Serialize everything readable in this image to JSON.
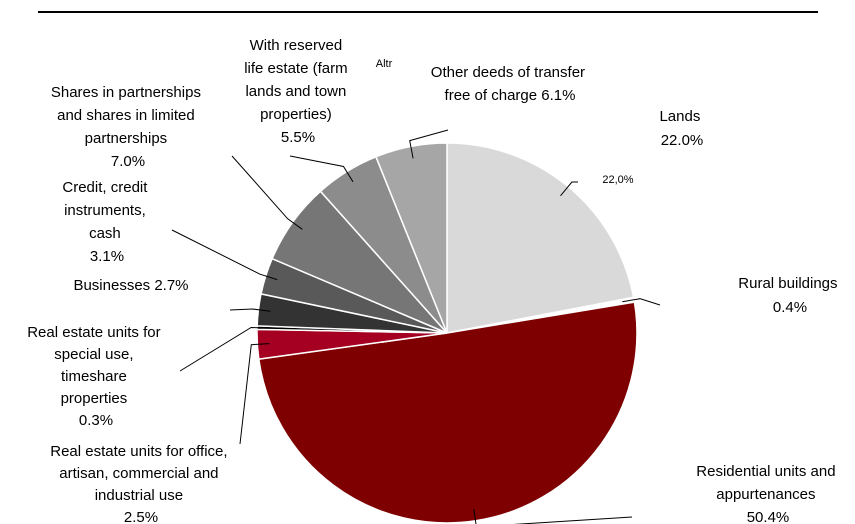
{
  "chart_data": {
    "type": "pie",
    "title": "",
    "slices": [
      {
        "label": "Lands",
        "value": 22.0,
        "color": "#d9d9d9"
      },
      {
        "label": "Rural buildings",
        "value": 0.4,
        "color": "#ffffff"
      },
      {
        "label": "Residential units and appurtenances",
        "value": 50.4,
        "color": "#7f0000"
      },
      {
        "label": "Real estate units for office, artisan, commercial and industrial use",
        "value": 2.5,
        "color": "#a50021"
      },
      {
        "label": "Real estate units for special use, timeshare properties",
        "value": 0.3,
        "color": "#000000"
      },
      {
        "label": "Businesses",
        "value": 2.7,
        "color": "#333333"
      },
      {
        "label": "Credit, credit instruments, cash",
        "value": 3.1,
        "color": "#595959"
      },
      {
        "label": "Shares in partnerships and shares in limited partnerships",
        "value": 7.0,
        "color": "#767676"
      },
      {
        "label": "With reserved life estate (farm lands and town properties)",
        "value": 5.5,
        "color": "#8c8c8c"
      },
      {
        "label": "Other deeds of transfer free of charge",
        "value": 6.1,
        "color": "#a6a6a6"
      }
    ],
    "labels": {
      "lands": [
        "Lands",
        "22.0%"
      ],
      "rural": [
        "Rural buildings",
        "0.4%"
      ],
      "residential": [
        "Residential units and",
        "appurtenances",
        "50.4%"
      ],
      "office": [
        "Real estate units for office,",
        "artisan, commercial and",
        "industrial use",
        "2.5%"
      ],
      "special": [
        "Real estate units for",
        "special use,",
        "timeshare",
        "properties",
        "0.3%"
      ],
      "businesses": [
        "Businesses 2.7%"
      ],
      "credit": [
        "Credit, credit",
        "instruments,",
        "cash",
        "3.1%"
      ],
      "shares": [
        "Shares in partnerships",
        "and shares in limited",
        "partnerships",
        "7.0%"
      ],
      "reserved": [
        "With reserved",
        "life estate (farm",
        "lands and town",
        "properties)",
        "5.5%"
      ],
      "other": [
        "Other deeds of transfer",
        "free of charge 6.1%"
      ]
    },
    "overlap_fragments": {
      "altr": "Altr",
      "lands_ghost": "22,0%"
    }
  }
}
